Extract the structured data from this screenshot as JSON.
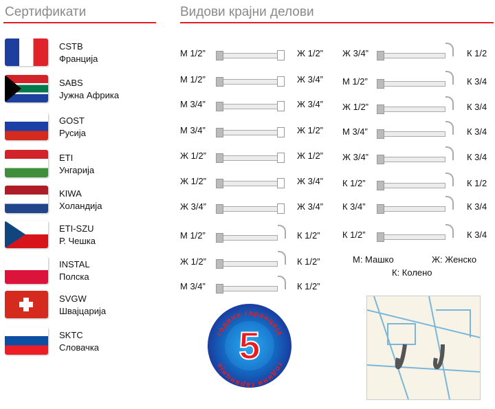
{
  "certificates": {
    "title": "Сертификати",
    "items": [
      {
        "code": "CSTB",
        "country": "Франција"
      },
      {
        "code": "SABS",
        "country": "Јужна Африка"
      },
      {
        "code": "GOST",
        "country": "Русија"
      },
      {
        "code": "ETI",
        "country": "Унгарија"
      },
      {
        "code": "KIWA",
        "country": "Холандија"
      },
      {
        "code": "ETI-SZU",
        "country": "Р. Чешка"
      },
      {
        "code": "INSTAL",
        "country": "Полска"
      },
      {
        "code": "SVGW",
        "country": "Швајцарија"
      },
      {
        "code": "SKTC",
        "country": "Словачка"
      }
    ]
  },
  "fittings": {
    "title": "Видови крајни делови",
    "left": [
      [
        "М 1/2”",
        "Ж 1/2”",
        "s"
      ],
      [
        "М 1/2”",
        "Ж 3/4”",
        "s"
      ],
      [
        "М 3/4”",
        "Ж 3/4”",
        "s"
      ],
      [
        "М 3/4”",
        "Ж 1/2”",
        "s"
      ],
      [
        "Ж 1/2”",
        "Ж 1/2”",
        "s"
      ],
      [
        "Ж 1/2”",
        "Ж 3/4”",
        "s"
      ],
      [
        "Ж 3/4”",
        "Ж 3/4”",
        "s"
      ],
      [
        "М 1/2”",
        "К 1/2”",
        "e"
      ],
      [
        "Ж 1/2”",
        "К 1/2”",
        "e"
      ],
      [
        "М 3/4”",
        "К 1/2”",
        "e"
      ]
    ],
    "right": [
      [
        "Ж 3/4”",
        "К 1/2",
        "e"
      ],
      [
        "М 1/2”",
        "К 3/4",
        "e"
      ],
      [
        "Ж 1/2”",
        "К 3/4",
        "e"
      ],
      [
        "М 3/4”",
        "К 3/4",
        "e"
      ],
      [
        "Ж 3/4”",
        "К 3/4",
        "e"
      ],
      [
        "К 1/2”",
        "К 1/2",
        "e"
      ],
      [
        "К 3/4”",
        "К 3/4",
        "e"
      ],
      [
        "К 1/2”",
        "К 3/4",
        "e"
      ]
    ],
    "legend": {
      "m": "М: Машко",
      "z": "Ж: Женско",
      "k": "К: Колено"
    }
  },
  "badge": {
    "number": "5",
    "text": "години гаранција"
  },
  "colors": {
    "accent": "#e31e24",
    "badge": "#1a5fc0"
  }
}
